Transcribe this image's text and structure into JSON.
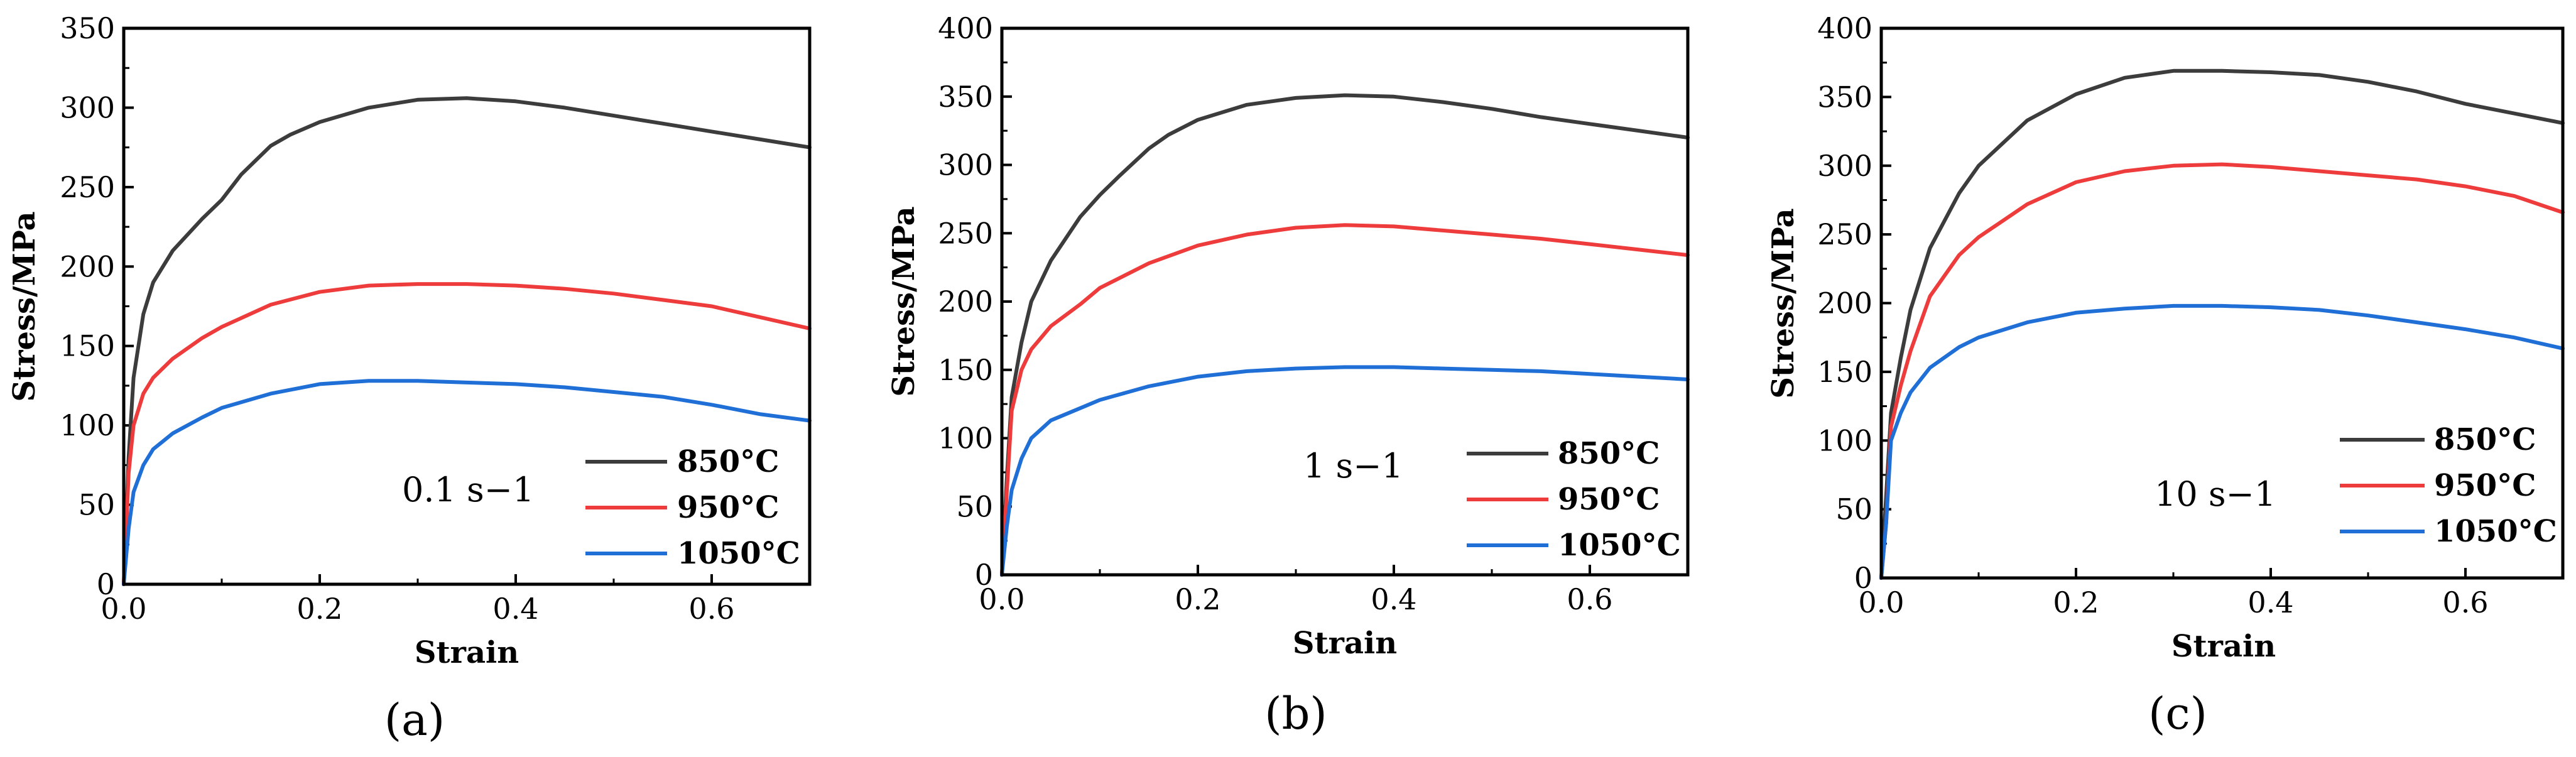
{
  "figure": {
    "line_colors": {
      "850°C": "#3c3c3c",
      "950°C": "#ee3b3b",
      "1050°C": "#1f6fd6"
    }
  },
  "chart_data": [
    {
      "type": "line",
      "panel_label": "(a)",
      "rate_label": "0.1 s−1",
      "xlabel": "Strain",
      "ylabel": "Stress/MPa",
      "xlim": [
        0,
        0.7
      ],
      "ylim": [
        0,
        350
      ],
      "xticks": [
        "0.0",
        "0.2",
        "0.4",
        "0.6"
      ],
      "xtick_values": [
        0,
        0.2,
        0.4,
        0.6
      ],
      "yticks": [
        "0",
        "50",
        "100",
        "150",
        "200",
        "250",
        "300",
        "350"
      ],
      "ytick_values": [
        0,
        50,
        100,
        150,
        200,
        250,
        300,
        350
      ],
      "legend_position": "bottom-right",
      "series": [
        {
          "name": "850°C",
          "color": "#3c3c3c",
          "x": [
            0,
            0.005,
            0.01,
            0.02,
            0.03,
            0.05,
            0.08,
            0.1,
            0.12,
            0.15,
            0.17,
            0.2,
            0.25,
            0.3,
            0.35,
            0.4,
            0.45,
            0.5,
            0.55,
            0.6,
            0.65,
            0.7
          ],
          "y": [
            0,
            80,
            130,
            170,
            190,
            210,
            230,
            242,
            258,
            276,
            283,
            291,
            300,
            305,
            306,
            304,
            300,
            295,
            290,
            285,
            280,
            275
          ]
        },
        {
          "name": "950°C",
          "color": "#ee3b3b",
          "x": [
            0,
            0.005,
            0.01,
            0.02,
            0.03,
            0.05,
            0.08,
            0.1,
            0.15,
            0.2,
            0.25,
            0.3,
            0.35,
            0.4,
            0.45,
            0.5,
            0.55,
            0.6,
            0.65,
            0.7
          ],
          "y": [
            0,
            70,
            100,
            120,
            130,
            142,
            155,
            162,
            176,
            184,
            188,
            189,
            189,
            188,
            186,
            183,
            179,
            175,
            168,
            161
          ]
        },
        {
          "name": "1050°C",
          "color": "#1f6fd6",
          "x": [
            0,
            0.005,
            0.01,
            0.02,
            0.03,
            0.05,
            0.08,
            0.1,
            0.15,
            0.2,
            0.25,
            0.3,
            0.35,
            0.4,
            0.45,
            0.5,
            0.55,
            0.6,
            0.65,
            0.7
          ],
          "y": [
            0,
            35,
            58,
            75,
            85,
            95,
            105,
            111,
            120,
            126,
            128,
            128,
            127,
            126,
            124,
            121,
            118,
            113,
            107,
            103
          ]
        }
      ]
    },
    {
      "type": "line",
      "panel_label": "(b)",
      "rate_label": "1 s−1",
      "xlabel": "Strain",
      "ylabel": "Stress/MPa",
      "xlim": [
        0,
        0.7
      ],
      "ylim": [
        0,
        400
      ],
      "xticks": [
        "0.0",
        "0.2",
        "0.4",
        "0.6"
      ],
      "xtick_values": [
        0,
        0.2,
        0.4,
        0.6
      ],
      "yticks": [
        "0",
        "50",
        "100",
        "150",
        "200",
        "250",
        "300",
        "350",
        "400"
      ],
      "ytick_values": [
        0,
        50,
        100,
        150,
        200,
        250,
        300,
        350,
        400
      ],
      "legend_position": "bottom-right",
      "series": [
        {
          "name": "850°C",
          "color": "#3c3c3c",
          "x": [
            0,
            0.005,
            0.01,
            0.02,
            0.03,
            0.05,
            0.08,
            0.1,
            0.12,
            0.15,
            0.17,
            0.2,
            0.25,
            0.3,
            0.35,
            0.4,
            0.45,
            0.5,
            0.55,
            0.6,
            0.65,
            0.7
          ],
          "y": [
            0,
            70,
            130,
            170,
            200,
            230,
            262,
            278,
            292,
            312,
            322,
            333,
            344,
            349,
            351,
            350,
            346,
            341,
            335,
            330,
            325,
            320
          ]
        },
        {
          "name": "950°C",
          "color": "#ee3b3b",
          "x": [
            0,
            0.005,
            0.01,
            0.02,
            0.03,
            0.05,
            0.08,
            0.1,
            0.15,
            0.2,
            0.25,
            0.3,
            0.35,
            0.4,
            0.45,
            0.5,
            0.55,
            0.6,
            0.65,
            0.7
          ],
          "y": [
            0,
            60,
            120,
            150,
            165,
            182,
            198,
            210,
            228,
            241,
            249,
            254,
            256,
            255,
            252,
            249,
            246,
            242,
            238,
            234
          ]
        },
        {
          "name": "1050°C",
          "color": "#1f6fd6",
          "x": [
            0,
            0.005,
            0.01,
            0.02,
            0.03,
            0.05,
            0.08,
            0.1,
            0.15,
            0.2,
            0.25,
            0.3,
            0.35,
            0.4,
            0.45,
            0.5,
            0.55,
            0.6,
            0.65,
            0.7
          ],
          "y": [
            0,
            35,
            62,
            85,
            100,
            113,
            122,
            128,
            138,
            145,
            149,
            151,
            152,
            152,
            151,
            150,
            149,
            147,
            145,
            143
          ]
        }
      ]
    },
    {
      "type": "line",
      "panel_label": "(c)",
      "rate_label": "10 s−1",
      "xlabel": "Strain",
      "ylabel": "Stress/MPa",
      "xlim": [
        0,
        0.7
      ],
      "ylim": [
        0,
        400
      ],
      "xticks": [
        "0.0",
        "0.2",
        "0.4",
        "0.6"
      ],
      "xtick_values": [
        0,
        0.2,
        0.4,
        0.6
      ],
      "yticks": [
        "0",
        "50",
        "100",
        "150",
        "200",
        "250",
        "300",
        "350",
        "400"
      ],
      "ytick_values": [
        0,
        50,
        100,
        150,
        200,
        250,
        300,
        350,
        400
      ],
      "legend_position": "middle-right",
      "series": [
        {
          "name": "850°C",
          "color": "#3c3c3c",
          "x": [
            0,
            0.005,
            0.01,
            0.02,
            0.03,
            0.05,
            0.08,
            0.1,
            0.15,
            0.2,
            0.25,
            0.3,
            0.35,
            0.4,
            0.45,
            0.5,
            0.55,
            0.6,
            0.65,
            0.7
          ],
          "y": [
            0,
            60,
            120,
            160,
            195,
            240,
            280,
            300,
            333,
            352,
            364,
            369,
            369,
            368,
            366,
            361,
            354,
            345,
            338,
            331
          ]
        },
        {
          "name": "950°C",
          "color": "#ee3b3b",
          "x": [
            0,
            0.005,
            0.01,
            0.02,
            0.03,
            0.05,
            0.08,
            0.1,
            0.15,
            0.2,
            0.25,
            0.3,
            0.35,
            0.4,
            0.45,
            0.5,
            0.55,
            0.6,
            0.65,
            0.7
          ],
          "y": [
            0,
            40,
            110,
            140,
            165,
            205,
            235,
            248,
            272,
            288,
            296,
            300,
            301,
            299,
            296,
            293,
            290,
            285,
            278,
            266
          ]
        },
        {
          "name": "1050°C",
          "color": "#1f6fd6",
          "x": [
            0,
            0.005,
            0.01,
            0.02,
            0.03,
            0.05,
            0.08,
            0.1,
            0.15,
            0.2,
            0.25,
            0.3,
            0.35,
            0.4,
            0.45,
            0.5,
            0.55,
            0.6,
            0.65,
            0.7
          ],
          "y": [
            0,
            40,
            100,
            120,
            135,
            153,
            168,
            175,
            186,
            193,
            196,
            198,
            198,
            197,
            195,
            191,
            186,
            181,
            175,
            167
          ]
        }
      ]
    }
  ]
}
